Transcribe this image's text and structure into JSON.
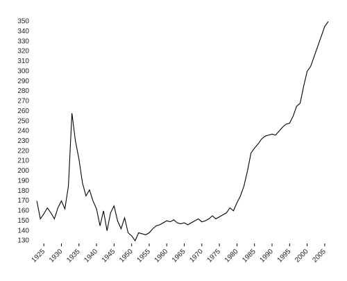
{
  "chart_data": {
    "type": "line",
    "x": [
      1923,
      1924,
      1925,
      1926,
      1927,
      1928,
      1929,
      1930,
      1931,
      1932,
      1933,
      1934,
      1935,
      1936,
      1937,
      1938,
      1939,
      1940,
      1941,
      1942,
      1943,
      1944,
      1945,
      1946,
      1947,
      1948,
      1949,
      1950,
      1951,
      1952,
      1953,
      1954,
      1955,
      1956,
      1957,
      1958,
      1959,
      1960,
      1961,
      1962,
      1963,
      1964,
      1965,
      1966,
      1967,
      1968,
      1969,
      1970,
      1971,
      1972,
      1973,
      1974,
      1975,
      1976,
      1977,
      1978,
      1979,
      1980,
      1981,
      1982,
      1983,
      1984,
      1985,
      1986,
      1987,
      1988,
      1989,
      1990,
      1991,
      1992,
      1993,
      1994,
      1995,
      1996,
      1997,
      1998,
      1999,
      2000,
      2001,
      2002,
      2003,
      2004,
      2005,
      2006
    ],
    "series": [
      {
        "color": "#000000",
        "values": [
          170,
          152,
          157,
          163,
          158,
          152,
          163,
          170,
          162,
          185,
          258,
          230,
          212,
          188,
          175,
          181,
          170,
          162,
          145,
          160,
          140,
          158,
          165,
          150,
          142,
          153,
          138,
          135,
          130,
          138,
          137,
          136,
          138,
          142,
          145,
          146,
          148,
          150,
          149,
          151,
          148,
          147,
          148,
          146,
          148,
          150,
          152,
          149,
          150,
          152,
          155,
          152,
          154,
          156,
          158,
          163,
          160,
          168,
          175,
          185,
          200,
          218,
          223,
          227,
          232,
          235,
          236,
          237,
          236,
          240,
          244,
          247,
          248,
          255,
          265,
          268,
          285,
          300,
          305,
          315,
          325,
          335,
          345,
          350
        ]
      }
    ],
    "xlim": [
      1922,
      2007
    ],
    "xticks": [
      1925,
      1930,
      1935,
      1940,
      1945,
      1950,
      1955,
      1960,
      1965,
      1970,
      1975,
      1980,
      1985,
      1990,
      1995,
      2000,
      2005
    ],
    "ylim": [
      130,
      350
    ],
    "yticks": [
      130,
      140,
      150,
      160,
      170,
      180,
      190,
      200,
      210,
      220,
      230,
      240,
      250,
      260,
      270,
      280,
      290,
      300,
      310,
      320,
      330,
      340,
      350
    ]
  }
}
